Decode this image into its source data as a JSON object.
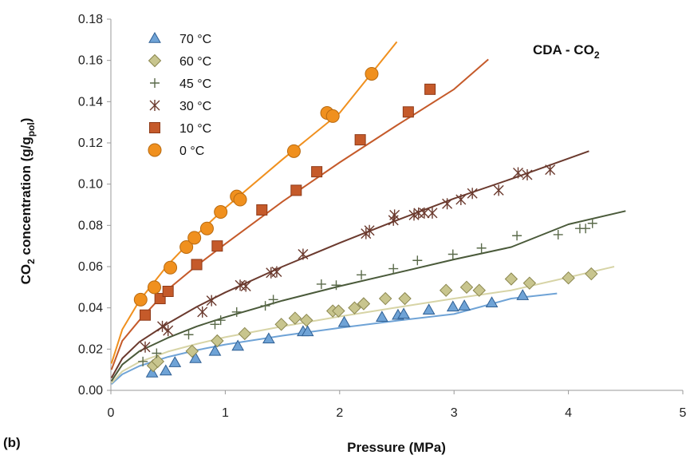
{
  "panel_label": "(b)",
  "chart_data": {
    "type": "scatter",
    "annotation": {
      "main": "CDA - CO",
      "sub": "2"
    },
    "xlabel": "Pressure (MPa)",
    "ylabel": {
      "a": "CO",
      "b": "2",
      "c": " concentration (g/g",
      "d": "pol",
      "e": ")"
    },
    "xlim": [
      0,
      5
    ],
    "ylim": [
      0,
      0.18
    ],
    "xticks": [
      0,
      1,
      2,
      3,
      4,
      5
    ],
    "yticks": [
      "0.00",
      "0.02",
      "0.04",
      "0.06",
      "0.08",
      "0.10",
      "0.12",
      "0.14",
      "0.16",
      "0.18"
    ],
    "grid": false,
    "legend_position": "top-left",
    "series": [
      {
        "name": "70 °C",
        "marker": "triangle",
        "fill": "#6fa3d6",
        "stroke": "#2f5f93",
        "line": "#6fa3d6",
        "points": [
          [
            0.36,
            0.0085
          ],
          [
            0.48,
            0.0095
          ],
          [
            0.56,
            0.0135
          ],
          [
            0.74,
            0.0155
          ],
          [
            0.91,
            0.019
          ],
          [
            1.11,
            0.0215
          ],
          [
            1.38,
            0.025
          ],
          [
            1.68,
            0.0285
          ],
          [
            1.72,
            0.0285
          ],
          [
            2.04,
            0.033
          ],
          [
            2.37,
            0.0355
          ],
          [
            2.51,
            0.0365
          ],
          [
            2.56,
            0.037
          ],
          [
            2.78,
            0.039
          ],
          [
            2.99,
            0.0405
          ],
          [
            3.09,
            0.041
          ],
          [
            3.33,
            0.0425
          ],
          [
            3.6,
            0.046
          ]
        ],
        "fit": [
          [
            0.005,
            0.003
          ],
          [
            0.1,
            0.0078
          ],
          [
            0.25,
            0.0118
          ],
          [
            0.5,
            0.0162
          ],
          [
            0.75,
            0.0195
          ],
          [
            1.0,
            0.0222
          ],
          [
            1.5,
            0.0265
          ],
          [
            2.0,
            0.0303
          ],
          [
            2.5,
            0.0338
          ],
          [
            3.0,
            0.037
          ],
          [
            3.5,
            0.0445
          ],
          [
            3.9,
            0.047
          ]
        ]
      },
      {
        "name": "60 °C",
        "marker": "diamond",
        "fill": "#c8c58e",
        "stroke": "#8a864e",
        "line": "#d7d4a6",
        "points": [
          [
            0.37,
            0.012
          ],
          [
            0.41,
            0.014
          ],
          [
            0.71,
            0.019
          ],
          [
            0.93,
            0.024
          ],
          [
            1.17,
            0.0275
          ],
          [
            1.49,
            0.032
          ],
          [
            1.61,
            0.035
          ],
          [
            1.71,
            0.034
          ],
          [
            1.94,
            0.0385
          ],
          [
            1.99,
            0.0385
          ],
          [
            2.13,
            0.04
          ],
          [
            2.21,
            0.042
          ],
          [
            2.4,
            0.0445
          ],
          [
            2.57,
            0.0445
          ],
          [
            2.93,
            0.0485
          ],
          [
            3.11,
            0.05
          ],
          [
            3.22,
            0.0485
          ],
          [
            3.5,
            0.054
          ],
          [
            3.66,
            0.052
          ],
          [
            4.0,
            0.0545
          ],
          [
            4.2,
            0.0565
          ]
        ],
        "fit": [
          [
            0.005,
            0.0035
          ],
          [
            0.1,
            0.0092
          ],
          [
            0.25,
            0.0138
          ],
          [
            0.5,
            0.0188
          ],
          [
            0.75,
            0.0225
          ],
          [
            1.0,
            0.0258
          ],
          [
            1.5,
            0.031
          ],
          [
            2.0,
            0.0358
          ],
          [
            2.5,
            0.0402
          ],
          [
            3.0,
            0.0445
          ],
          [
            3.5,
            0.0485
          ],
          [
            4.0,
            0.0548
          ],
          [
            4.4,
            0.06
          ]
        ]
      },
      {
        "name": "45 °C",
        "marker": "plus",
        "fill": "none",
        "stroke": "#5a6a4a",
        "line": "#4a5a3a",
        "points": [
          [
            0.28,
            0.014
          ],
          [
            0.4,
            0.018
          ],
          [
            0.68,
            0.027
          ],
          [
            0.91,
            0.032
          ],
          [
            0.96,
            0.034
          ],
          [
            1.1,
            0.038
          ],
          [
            1.35,
            0.041
          ],
          [
            1.42,
            0.044
          ],
          [
            1.84,
            0.0515
          ],
          [
            1.97,
            0.051
          ],
          [
            2.19,
            0.056
          ],
          [
            2.47,
            0.059
          ],
          [
            2.68,
            0.063
          ],
          [
            2.99,
            0.066
          ],
          [
            3.24,
            0.069
          ],
          [
            3.55,
            0.075
          ],
          [
            3.91,
            0.0755
          ],
          [
            4.1,
            0.0785
          ],
          [
            4.15,
            0.0785
          ],
          [
            4.21,
            0.081
          ]
        ],
        "fit": [
          [
            0.005,
            0.0045
          ],
          [
            0.1,
            0.0125
          ],
          [
            0.25,
            0.019
          ],
          [
            0.5,
            0.0255
          ],
          [
            0.75,
            0.031
          ],
          [
            1.0,
            0.0355
          ],
          [
            1.5,
            0.0435
          ],
          [
            2.0,
            0.0505
          ],
          [
            2.5,
            0.057
          ],
          [
            3.0,
            0.0635
          ],
          [
            3.5,
            0.0695
          ],
          [
            4.0,
            0.0805
          ],
          [
            4.5,
            0.087
          ]
        ]
      },
      {
        "name": "30 °C",
        "marker": "star",
        "fill": "none",
        "stroke": "#6b3a2e",
        "line": "#6b3a2e",
        "points": [
          [
            0.3,
            0.021
          ],
          [
            0.45,
            0.031
          ],
          [
            0.5,
            0.029
          ],
          [
            0.8,
            0.038
          ],
          [
            0.88,
            0.0435
          ],
          [
            1.13,
            0.051
          ],
          [
            1.18,
            0.0505
          ],
          [
            1.4,
            0.057
          ],
          [
            1.45,
            0.0575
          ],
          [
            1.68,
            0.066
          ],
          [
            2.23,
            0.076
          ],
          [
            2.26,
            0.0775
          ],
          [
            2.47,
            0.0825
          ],
          [
            2.48,
            0.085
          ],
          [
            2.65,
            0.085
          ],
          [
            2.69,
            0.086
          ],
          [
            2.74,
            0.086
          ],
          [
            2.81,
            0.086
          ],
          [
            2.94,
            0.0905
          ],
          [
            3.06,
            0.0925
          ],
          [
            3.16,
            0.0955
          ],
          [
            3.39,
            0.097
          ],
          [
            3.56,
            0.1055
          ],
          [
            3.64,
            0.1045
          ],
          [
            3.84,
            0.107
          ]
        ],
        "fit": [
          [
            0.005,
            0.006
          ],
          [
            0.1,
            0.0155
          ],
          [
            0.25,
            0.0235
          ],
          [
            0.5,
            0.0325
          ],
          [
            0.75,
            0.0405
          ],
          [
            1.0,
            0.0475
          ],
          [
            1.5,
            0.06
          ],
          [
            2.0,
            0.0715
          ],
          [
            2.5,
            0.0825
          ],
          [
            3.0,
            0.093
          ],
          [
            3.5,
            0.1025
          ],
          [
            4.18,
            0.116
          ]
        ]
      },
      {
        "name": "10 °C",
        "marker": "square",
        "fill": "#c55a2a",
        "stroke": "#8e3a18",
        "line": "#c55a2a",
        "points": [
          [
            0.3,
            0.0365
          ],
          [
            0.43,
            0.0445
          ],
          [
            0.5,
            0.048
          ],
          [
            0.75,
            0.061
          ],
          [
            0.93,
            0.07
          ],
          [
            1.32,
            0.0875
          ],
          [
            1.62,
            0.097
          ],
          [
            1.8,
            0.106
          ],
          [
            2.18,
            0.1215
          ],
          [
            2.6,
            0.135
          ],
          [
            2.79,
            0.146
          ]
        ],
        "fit": [
          [
            0.005,
            0.01
          ],
          [
            0.1,
            0.024
          ],
          [
            0.25,
            0.034
          ],
          [
            0.5,
            0.049
          ],
          [
            0.75,
            0.0605
          ],
          [
            1.0,
            0.071
          ],
          [
            1.5,
            0.0915
          ],
          [
            2.0,
            0.1105
          ],
          [
            2.5,
            0.1285
          ],
          [
            3.0,
            0.146
          ],
          [
            3.3,
            0.1605
          ]
        ]
      },
      {
        "name": "0 °C",
        "marker": "circle",
        "fill": "#f0901e",
        "stroke": "#b86a10",
        "line": "#f0901e",
        "points": [
          [
            0.26,
            0.044
          ],
          [
            0.38,
            0.05
          ],
          [
            0.52,
            0.0595
          ],
          [
            0.66,
            0.0695
          ],
          [
            0.73,
            0.074
          ],
          [
            0.84,
            0.0785
          ],
          [
            0.96,
            0.0865
          ],
          [
            1.1,
            0.094
          ],
          [
            1.13,
            0.0925
          ],
          [
            1.6,
            0.116
          ],
          [
            1.89,
            0.1345
          ],
          [
            1.94,
            0.133
          ],
          [
            2.28,
            0.1535
          ]
        ],
        "fit": [
          [
            0.005,
            0.013
          ],
          [
            0.1,
            0.0295
          ],
          [
            0.25,
            0.0435
          ],
          [
            0.5,
            0.061
          ],
          [
            0.75,
            0.0755
          ],
          [
            1.0,
            0.0885
          ],
          [
            1.5,
            0.112
          ],
          [
            2.0,
            0.1345
          ],
          [
            2.5,
            0.169
          ]
        ]
      }
    ]
  }
}
